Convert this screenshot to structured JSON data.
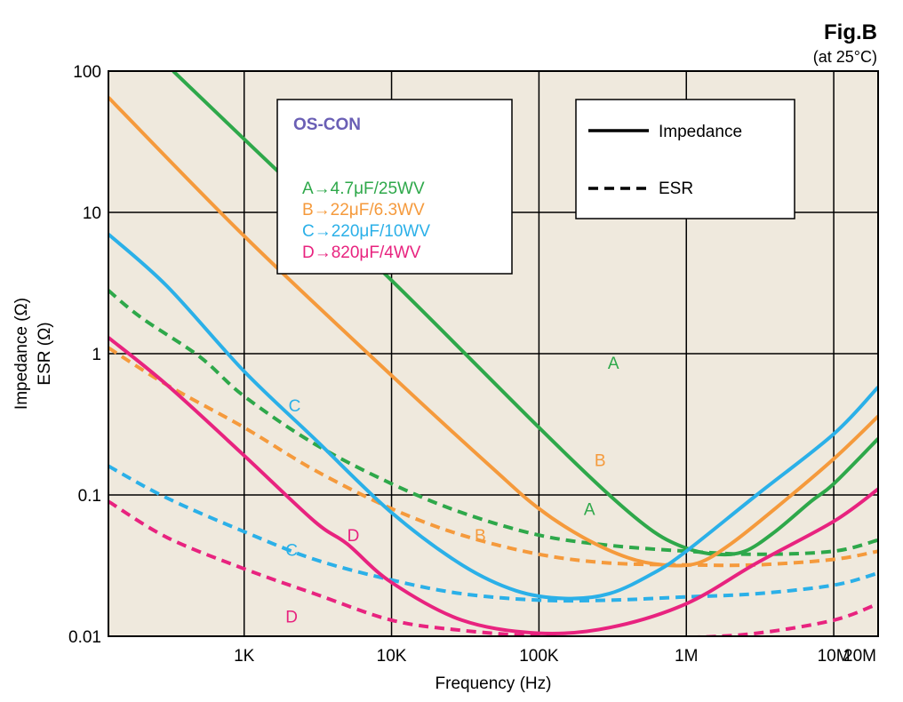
{
  "figure": {
    "title": "Fig.B",
    "subtitle": "(at 25°C)"
  },
  "colors": {
    "background": "#efe9dd",
    "A": "#2ea84a",
    "B": "#f59a3c",
    "C": "#2bb0e8",
    "D": "#e8237f",
    "legend_title": "#6a5fb5"
  },
  "chart_data": {
    "type": "line",
    "xlabel": "Frequency  (Hz)",
    "ylabel_line1": "Impedance  (Ω)",
    "ylabel_line2": "ESR  (Ω)",
    "x_scale": "log",
    "y_scale": "log",
    "xlim": [
      120,
      20000000
    ],
    "ylim": [
      0.01,
      100
    ],
    "grid": true,
    "x_ticks": [
      {
        "value": 1000,
        "label": "1K"
      },
      {
        "value": 10000,
        "label": "10K"
      },
      {
        "value": 100000,
        "label": "100K"
      },
      {
        "value": 1000000,
        "label": "1M"
      },
      {
        "value": 10000000,
        "label": "10M"
      },
      {
        "value": 20000000,
        "label": "20M"
      }
    ],
    "y_ticks": [
      {
        "value": 0.01,
        "label": "0.01"
      },
      {
        "value": 0.1,
        "label": "0.1"
      },
      {
        "value": 1,
        "label": "1"
      },
      {
        "value": 10,
        "label": "10"
      },
      {
        "value": 100,
        "label": "100"
      }
    ],
    "manufacturer_legend": {
      "title": "OS-CON",
      "entries": [
        {
          "key": "A",
          "text": "A→4.7μF/25WV"
        },
        {
          "key": "B",
          "text": "B→22μF/6.3WV"
        },
        {
          "key": "C",
          "text": "C→220μF/10WV"
        },
        {
          "key": "D",
          "text": "D→820μF/4WV"
        }
      ]
    },
    "style_legend": {
      "placement": "top-right",
      "entries": [
        {
          "style": "solid",
          "text": "Impedance"
        },
        {
          "style": "dashed",
          "text": "ESR"
        }
      ]
    },
    "series": [
      {
        "key": "A",
        "kind": "impedance",
        "style": "solid",
        "points": [
          [
            330,
            100
          ],
          [
            1000,
            33
          ],
          [
            10000,
            3.3
          ],
          [
            100000,
            0.3
          ],
          [
            300000,
            0.1
          ],
          [
            600000,
            0.055
          ],
          [
            1000000,
            0.042
          ],
          [
            1600000,
            0.038
          ],
          [
            2500000,
            0.04
          ],
          [
            4000000,
            0.055
          ],
          [
            7000000,
            0.09
          ],
          [
            10000000,
            0.12
          ],
          [
            20000000,
            0.25
          ]
        ]
      },
      {
        "key": "A",
        "kind": "esr",
        "style": "dashed",
        "points": [
          [
            120,
            2.8
          ],
          [
            200,
            1.8
          ],
          [
            500,
            0.95
          ],
          [
            1000,
            0.5
          ],
          [
            3000,
            0.23
          ],
          [
            10000,
            0.12
          ],
          [
            30000,
            0.075
          ],
          [
            100000,
            0.052
          ],
          [
            300000,
            0.044
          ],
          [
            1000000,
            0.04
          ],
          [
            3000000,
            0.038
          ],
          [
            10000000,
            0.04
          ],
          [
            20000000,
            0.048
          ]
        ]
      },
      {
        "key": "B",
        "kind": "impedance",
        "style": "solid",
        "points": [
          [
            120,
            65
          ],
          [
            1000,
            6.8
          ],
          [
            10000,
            0.7
          ],
          [
            50000,
            0.15
          ],
          [
            100000,
            0.08
          ],
          [
            200000,
            0.05
          ],
          [
            400000,
            0.036
          ],
          [
            700000,
            0.032
          ],
          [
            1200000,
            0.033
          ],
          [
            2000000,
            0.045
          ],
          [
            4000000,
            0.08
          ],
          [
            10000000,
            0.18
          ],
          [
            20000000,
            0.36
          ]
        ]
      },
      {
        "key": "B",
        "kind": "esr",
        "style": "dashed",
        "points": [
          [
            120,
            1.1
          ],
          [
            300,
            0.6
          ],
          [
            1000,
            0.3
          ],
          [
            3000,
            0.15
          ],
          [
            10000,
            0.08
          ],
          [
            30000,
            0.052
          ],
          [
            100000,
            0.038
          ],
          [
            300000,
            0.033
          ],
          [
            1000000,
            0.032
          ],
          [
            3000000,
            0.032
          ],
          [
            10000000,
            0.035
          ],
          [
            20000000,
            0.04
          ]
        ]
      },
      {
        "key": "C",
        "kind": "impedance",
        "style": "solid",
        "points": [
          [
            120,
            7
          ],
          [
            300,
            3
          ],
          [
            1000,
            0.75
          ],
          [
            3000,
            0.25
          ],
          [
            10000,
            0.075
          ],
          [
            30000,
            0.032
          ],
          [
            70000,
            0.021
          ],
          [
            150000,
            0.0185
          ],
          [
            300000,
            0.02
          ],
          [
            600000,
            0.028
          ],
          [
            1000000,
            0.04
          ],
          [
            3000000,
            0.1
          ],
          [
            10000000,
            0.27
          ],
          [
            20000000,
            0.58
          ]
        ]
      },
      {
        "key": "C",
        "kind": "esr",
        "style": "dashed",
        "points": [
          [
            120,
            0.16
          ],
          [
            300,
            0.095
          ],
          [
            1000,
            0.055
          ],
          [
            3000,
            0.035
          ],
          [
            10000,
            0.025
          ],
          [
            30000,
            0.02
          ],
          [
            100000,
            0.018
          ],
          [
            300000,
            0.018
          ],
          [
            1000000,
            0.019
          ],
          [
            3000000,
            0.02
          ],
          [
            10000000,
            0.023
          ],
          [
            20000000,
            0.028
          ]
        ]
      },
      {
        "key": "D",
        "kind": "impedance",
        "style": "solid",
        "points": [
          [
            120,
            1.3
          ],
          [
            300,
            0.6
          ],
          [
            1000,
            0.19
          ],
          [
            3000,
            0.065
          ],
          [
            5000,
            0.045
          ],
          [
            10000,
            0.024
          ],
          [
            30000,
            0.013
          ],
          [
            100000,
            0.0105
          ],
          [
            300000,
            0.0115
          ],
          [
            1000000,
            0.017
          ],
          [
            3000000,
            0.033
          ],
          [
            10000000,
            0.065
          ],
          [
            20000000,
            0.11
          ]
        ]
      },
      {
        "key": "D",
        "kind": "esr",
        "style": "dashed",
        "points": [
          [
            120,
            0.09
          ],
          [
            300,
            0.05
          ],
          [
            1000,
            0.03
          ],
          [
            3000,
            0.02
          ],
          [
            10000,
            0.013
          ],
          [
            30000,
            0.011
          ],
          [
            100000,
            0.01
          ],
          [
            300000,
            0.0098
          ],
          [
            1000000,
            0.0098
          ],
          [
            3000000,
            0.0105
          ],
          [
            10000000,
            0.013
          ],
          [
            20000000,
            0.017
          ]
        ]
      }
    ],
    "curve_labels": [
      {
        "key": "A",
        "text": "A",
        "x": 320000,
        "y": 0.78
      },
      {
        "key": "B",
        "text": "B",
        "x": 260000,
        "y": 0.16
      },
      {
        "key": "C",
        "text": "C",
        "x": 2200,
        "y": 0.39
      },
      {
        "key": "A",
        "text": "A",
        "x": 220000,
        "y": 0.072
      },
      {
        "key": "D",
        "text": "D",
        "x": 5500,
        "y": 0.047
      },
      {
        "key": "B",
        "text": "B",
        "x": 40000,
        "y": 0.047
      },
      {
        "key": "C",
        "text": "C",
        "x": 2100,
        "y": 0.037
      },
      {
        "key": "D",
        "text": "D",
        "x": 2100,
        "y": 0.0125
      }
    ]
  }
}
